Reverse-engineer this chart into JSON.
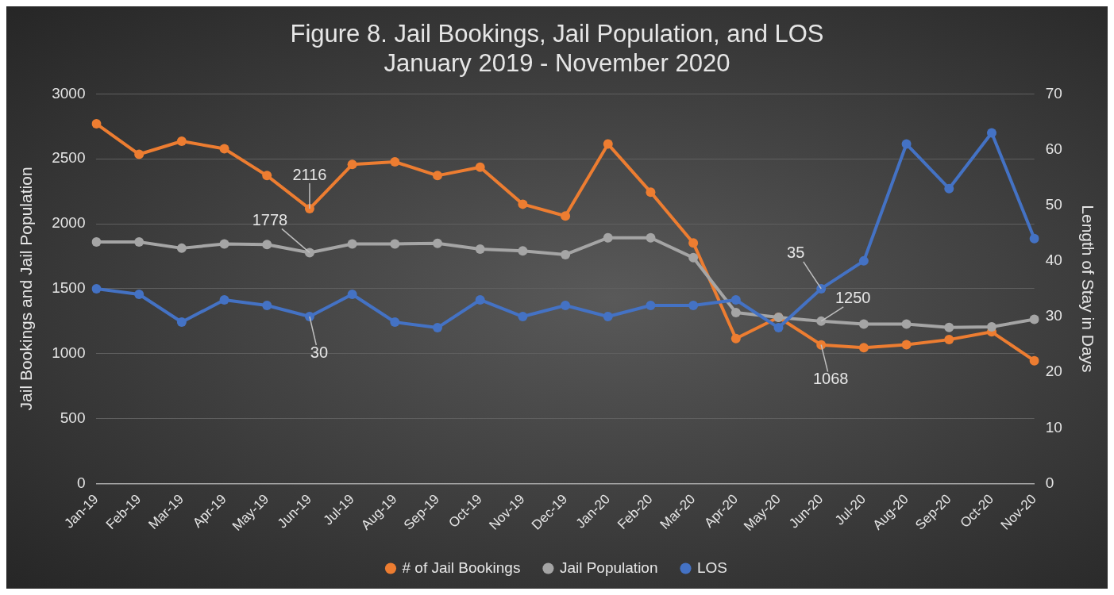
{
  "chart_data": {
    "type": "line",
    "title": "Figure 8. Jail Bookings, Jail Population, and LOS",
    "subtitle": "January 2019 - November 2020",
    "ylabel": "Jail Bookings and Jail Population",
    "y2label": "Length of Stay in Days",
    "categories": [
      "Jan-19",
      "Feb-19",
      "Mar-19",
      "Apr-19",
      "May-19",
      "Jun-19",
      "Jul-19",
      "Aug-19",
      "Sep-19",
      "Oct-19",
      "Nov-19",
      "Dec-19",
      "Jan-20",
      "Feb-20",
      "Mar-20",
      "Apr-20",
      "May-20",
      "Jun-20",
      "Jul-20",
      "Aug-20",
      "Sep-20",
      "Oct-20",
      "Nov-20"
    ],
    "series": [
      {
        "name": "# of Jail Bookings",
        "color": "#ed7d31",
        "values": [
          2770,
          2535,
          2636,
          2578,
          2371,
          2116,
          2457,
          2477,
          2371,
          2436,
          2151,
          2060,
          2614,
          2244,
          1853,
          1116,
          1280,
          1068,
          1046,
          1069,
          1108,
          1168,
          946
        ],
        "value_labels": [
          null,
          null,
          null,
          null,
          null,
          "2116",
          null,
          null,
          null,
          null,
          null,
          null,
          null,
          null,
          null,
          null,
          null,
          "1068",
          null,
          null,
          null,
          null,
          null
        ]
      },
      {
        "name": "Jail Population",
        "color": "#a5a5a5",
        "values": [
          1860,
          1860,
          1812,
          1845,
          1840,
          1778,
          1845,
          1845,
          1850,
          1805,
          1792,
          1763,
          1892,
          1892,
          1739,
          1317,
          1280,
          1250,
          1228,
          1228,
          1202,
          1207,
          1264
        ],
        "value_labels": [
          null,
          null,
          null,
          null,
          null,
          "1778",
          null,
          null,
          null,
          null,
          null,
          null,
          null,
          null,
          null,
          null,
          null,
          "1250",
          null,
          null,
          null,
          null,
          null
        ]
      },
      {
        "name": "LOS",
        "color": "#4472c4",
        "axis": "y2",
        "values": [
          35,
          34,
          29,
          33,
          32,
          30,
          34,
          29,
          28,
          33,
          30,
          32,
          30,
          32,
          32,
          33,
          28,
          35,
          40,
          61,
          53,
          63,
          44
        ],
        "value_labels": [
          null,
          null,
          null,
          null,
          null,
          "30",
          null,
          null,
          null,
          null,
          null,
          null,
          null,
          null,
          null,
          null,
          null,
          "35",
          null,
          null,
          null,
          null,
          null
        ]
      }
    ],
    "ylim": [
      0,
      3000
    ],
    "yticks": [
      0,
      500,
      1000,
      1500,
      2000,
      2500,
      3000
    ],
    "y2lim": [
      0,
      70
    ],
    "y2ticks": [
      0,
      10,
      20,
      30,
      40,
      50,
      60,
      70
    ],
    "grid": "y",
    "legend": "bottom",
    "marker": "circle",
    "line_style": "solid"
  }
}
